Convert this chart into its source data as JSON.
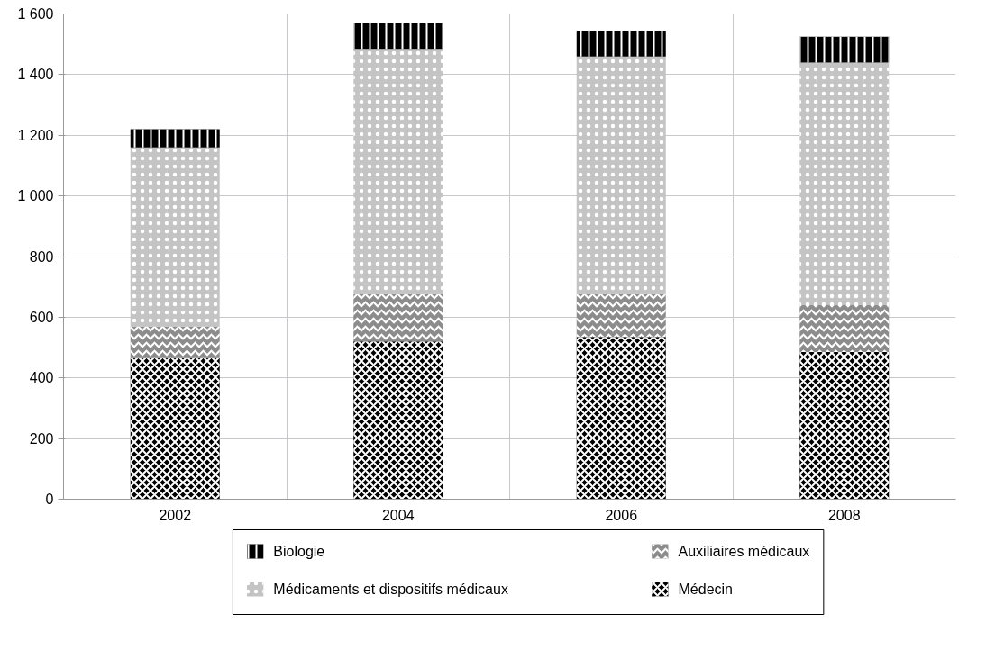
{
  "chart_data": {
    "type": "bar",
    "stacked": true,
    "categories": [
      "2002",
      "2004",
      "2006",
      "2008"
    ],
    "series": [
      {
        "name": "Médecin",
        "color": "#000000",
        "values": [
          465,
          520,
          535,
          485
        ]
      },
      {
        "name": "Auxiliaires médicaux",
        "color": "#8c8c8c",
        "values": [
          105,
          155,
          140,
          155
        ]
      },
      {
        "name": "Médicaments et dispositifs médicaux",
        "color": "#c4c4c4",
        "values": [
          590,
          810,
          785,
          800
        ]
      },
      {
        "name": "Biologie",
        "color": "#000000",
        "values": [
          60,
          85,
          85,
          85
        ]
      }
    ],
    "ylim": [
      0,
      1600
    ],
    "yticks": [
      0,
      200,
      400,
      600,
      800,
      {
        "value": 1000,
        "label": "1 000"
      },
      {
        "value": 1200,
        "label": "1 200"
      },
      {
        "value": 1400,
        "label": "1 400"
      },
      {
        "value": 1600,
        "label": "1 600"
      }
    ],
    "grid": true,
    "legend": "bottom"
  }
}
